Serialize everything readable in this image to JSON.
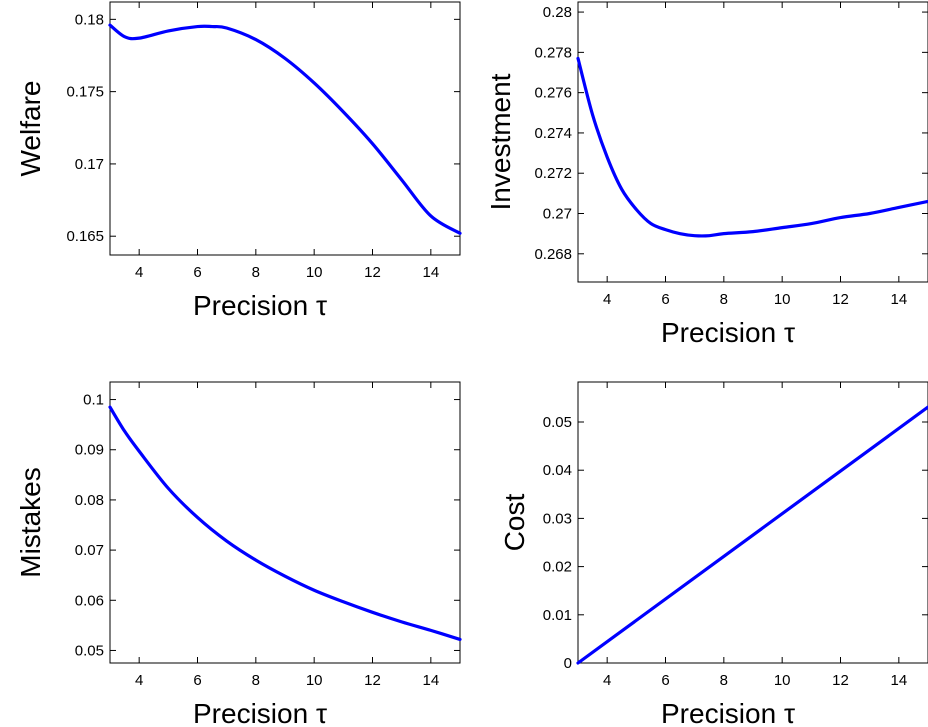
{
  "chart_data": [
    {
      "type": "line",
      "xlabel": "Precision τ",
      "ylabel": "Welfare",
      "xlim": [
        3,
        15
      ],
      "ylim": [
        0.1637,
        0.1812
      ],
      "xticks": [
        4,
        6,
        8,
        10,
        12,
        14
      ],
      "xtick_labels": [
        "4",
        "6",
        "8",
        "10",
        "12",
        "14"
      ],
      "yticks": [
        0.165,
        0.17,
        0.175,
        0.18
      ],
      "ytick_labels": [
        "0.165",
        "0.17",
        "0.175",
        "0.18"
      ],
      "grid": false,
      "series": [
        {
          "color": "#0000ff",
          "x": [
            3,
            3.5,
            4,
            5,
            6,
            6.5,
            7,
            8,
            9,
            10,
            11,
            12,
            13,
            14,
            15
          ],
          "y": [
            0.1796,
            0.1788,
            0.1787,
            0.1792,
            0.1795,
            0.1795,
            0.1794,
            0.1786,
            0.1773,
            0.1756,
            0.1736,
            0.1714,
            0.1689,
            0.1664,
            0.1652
          ]
        }
      ]
    },
    {
      "type": "line",
      "xlabel": "Precision τ",
      "ylabel": "Investment",
      "xlim": [
        3,
        15
      ],
      "ylim": [
        0.2666,
        0.2805
      ],
      "xticks": [
        4,
        6,
        8,
        10,
        12,
        14
      ],
      "xtick_labels": [
        "4",
        "6",
        "8",
        "10",
        "12",
        "14"
      ],
      "yticks": [
        0.268,
        0.27,
        0.272,
        0.274,
        0.276,
        0.278,
        0.28
      ],
      "ytick_labels": [
        "0.268",
        "0.27",
        "0.272",
        "0.274",
        "0.276",
        "0.278",
        "0.28"
      ],
      "grid": false,
      "series": [
        {
          "color": "#0000ff",
          "x": [
            3,
            3.5,
            4,
            4.5,
            5,
            5.5,
            6,
            6.5,
            7,
            7.5,
            8,
            9,
            10,
            11,
            12,
            13,
            14,
            15
          ],
          "y": [
            0.2777,
            0.2749,
            0.2728,
            0.2712,
            0.2702,
            0.2695,
            0.2692,
            0.269,
            0.2689,
            0.2689,
            0.269,
            0.2691,
            0.2693,
            0.2695,
            0.2698,
            0.27,
            0.2703,
            0.2706
          ]
        }
      ]
    },
    {
      "type": "line",
      "xlabel": "Precision τ",
      "ylabel": "Mistakes",
      "xlim": [
        3,
        15
      ],
      "ylim": [
        0.0475,
        0.1035
      ],
      "xticks": [
        4,
        6,
        8,
        10,
        12,
        14
      ],
      "xtick_labels": [
        "4",
        "6",
        "8",
        "10",
        "12",
        "14"
      ],
      "yticks": [
        0.05,
        0.06,
        0.07,
        0.08,
        0.09,
        0.1
      ],
      "ytick_labels": [
        "0.05",
        "0.06",
        "0.07",
        "0.08",
        "0.09",
        "0.1"
      ],
      "grid": false,
      "series": [
        {
          "color": "#0000ff",
          "x": [
            3,
            3.5,
            4,
            5,
            6,
            7,
            8,
            9,
            10,
            11,
            12,
            13,
            14,
            15
          ],
          "y": [
            0.0985,
            0.0937,
            0.0897,
            0.0823,
            0.0765,
            0.0718,
            0.068,
            0.0648,
            0.062,
            0.0597,
            0.0576,
            0.0557,
            0.054,
            0.0522
          ]
        }
      ]
    },
    {
      "type": "line",
      "xlabel": "Precision τ",
      "ylabel": "Cost",
      "xlim": [
        3,
        15
      ],
      "ylim": [
        0,
        0.0583
      ],
      "xticks": [
        4,
        6,
        8,
        10,
        12,
        14
      ],
      "xtick_labels": [
        "4",
        "6",
        "8",
        "10",
        "12",
        "14"
      ],
      "yticks": [
        0,
        0.01,
        0.02,
        0.03,
        0.04,
        0.05
      ],
      "ytick_labels": [
        "0",
        "0.01",
        "0.02",
        "0.03",
        "0.04",
        "0.05"
      ],
      "grid": false,
      "series": [
        {
          "color": "#0000ff",
          "x": [
            3,
            15
          ],
          "y": [
            0,
            0.0531
          ]
        }
      ]
    }
  ]
}
